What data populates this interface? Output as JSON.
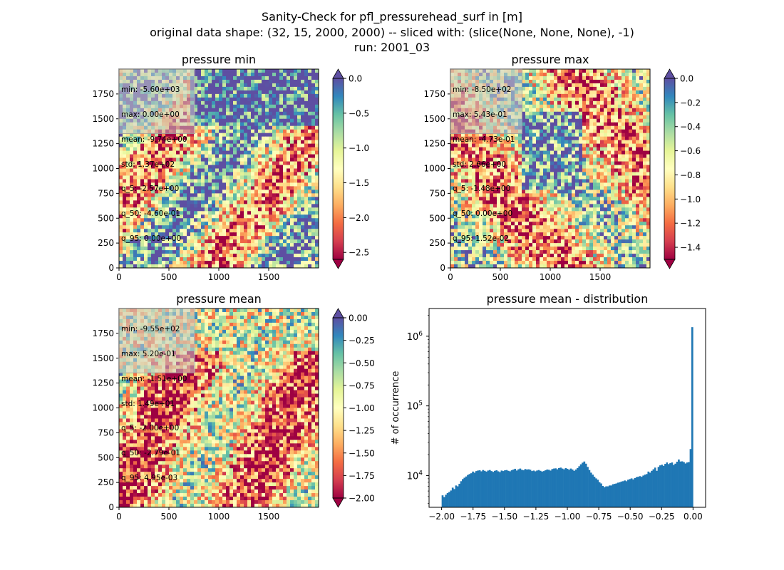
{
  "suptitle": {
    "line1": "Sanity-Check for pfl_pressurehead_surf in [m]",
    "line2": "original data shape: (32, 15, 2000, 2000) -- sliced with: (slice(None, None, None), -1)",
    "line3": "run: 2001_03"
  },
  "panels": [
    {
      "title": "pressure min",
      "stats": [
        "min: -5.60e+03",
        "max: 0.00e+00",
        "mean: -9.74e+00",
        "std: 1.37e+02",
        "q_5: -2.57e+00",
        "q_50: -4.60e-01",
        "q_95: 0.00e+00"
      ],
      "x_ticks": [
        "0",
        "500",
        "1000",
        "1500"
      ],
      "y_ticks": [
        "0",
        "250",
        "500",
        "750",
        "1000",
        "1250",
        "1500",
        "1750"
      ],
      "colorbar": {
        "vmin": -2.6,
        "vmax": 0.0,
        "ticks": [
          "0.0",
          "−0.5",
          "−1.0",
          "−1.5",
          "−2.0",
          "−2.5"
        ],
        "tick_values": [
          0,
          -0.5,
          -1.0,
          -1.5,
          -2.0,
          -2.5
        ],
        "extend_top": true,
        "extend_bottom": true
      }
    },
    {
      "title": "pressure max",
      "stats": [
        "min: -8.50e+02",
        "max: 5.43e-01",
        "mean: -4.73e-01",
        "std: 2.66e+00",
        "q_5: -1.48e+00",
        "q_50: 0.00e+00",
        "q_95: 1.52e-02"
      ],
      "x_ticks": [
        "0",
        "500",
        "1000",
        "1500"
      ],
      "y_ticks": [
        "0",
        "250",
        "500",
        "750",
        "1000",
        "1250",
        "1500",
        "1750"
      ],
      "colorbar": {
        "vmin": -1.5,
        "vmax": 0.0,
        "ticks": [
          "0.0",
          "−0.2",
          "−0.4",
          "−0.6",
          "−0.8",
          "−1.0",
          "−1.2",
          "−1.4"
        ],
        "tick_values": [
          0,
          -0.2,
          -0.4,
          -0.6,
          -0.8,
          -1.0,
          -1.2,
          -1.4
        ],
        "extend_top": true,
        "extend_bottom": true
      }
    },
    {
      "title": "pressure mean",
      "stats": [
        "min: -9.55e+02",
        "max: 5.20e-01",
        "mean: -1.51e+00",
        "std: 1.49e+01",
        "q_5: -2.00e+00",
        "q_50: -2.79e-01",
        "q_95: 4.95e-03"
      ],
      "x_ticks": [
        "0",
        "500",
        "1000",
        "1500"
      ],
      "y_ticks": [
        "0",
        "250",
        "500",
        "750",
        "1000",
        "1250",
        "1500",
        "1750"
      ],
      "colorbar": {
        "vmin": -2.0,
        "vmax": 0.0,
        "ticks": [
          "0.00",
          "−0.25",
          "−0.50",
          "−0.75",
          "−1.00",
          "−1.25",
          "−1.50",
          "−1.75",
          "−2.00"
        ],
        "tick_values": [
          0,
          -0.25,
          -0.5,
          -0.75,
          -1.0,
          -1.25,
          -1.5,
          -1.75,
          -2.0
        ],
        "extend_top": true,
        "extend_bottom": true
      }
    }
  ],
  "colors": {
    "spectral": [
      "#9e0142",
      "#d53e4f",
      "#f46d43",
      "#fdae61",
      "#fee08b",
      "#ffffbf",
      "#e6f598",
      "#abdda4",
      "#66c2a5",
      "#3288bd",
      "#5e4fa2"
    ],
    "hist_bar": "#1f77b4"
  },
  "chart_data": {
    "type": "bar",
    "title": "pressure mean - distribution",
    "xlabel": "",
    "ylabel": "# of occurrence",
    "yscale": "log",
    "xlim": [
      -2.1,
      0.1
    ],
    "ylim": [
      3500,
      2500000
    ],
    "x_ticks": [
      "−2.00",
      "−1.75",
      "−1.50",
      "−1.25",
      "−1.00",
      "−0.75",
      "−0.50",
      "−0.25",
      "0.00"
    ],
    "x_tick_values": [
      -2.0,
      -1.75,
      -1.5,
      -1.25,
      -1.0,
      -0.75,
      -0.5,
      -0.25,
      0.0
    ],
    "y_ticks": [
      "10^4",
      "10^5",
      "10^6"
    ],
    "bin_edges_range": [
      -2.0,
      0.0
    ],
    "values": [
      5200,
      4900,
      5300,
      5600,
      5800,
      6100,
      6700,
      6400,
      7200,
      7000,
      7600,
      8300,
      8900,
      9300,
      9700,
      10200,
      10500,
      10800,
      11400,
      11000,
      11600,
      11800,
      11900,
      11500,
      12000,
      11700,
      11400,
      11800,
      12000,
      11600,
      11300,
      11700,
      11900,
      11500,
      11200,
      11800,
      11600,
      11900,
      12000,
      11700,
      11500,
      11900,
      12200,
      12500,
      11800,
      12300,
      12600,
      12100,
      11900,
      12400,
      12200,
      12300,
      12100,
      11600,
      11800,
      11500,
      11800,
      12000,
      11700,
      11400,
      11600,
      11900,
      12200,
      12100,
      11800,
      12400,
      12600,
      12700,
      12300,
      12800,
      13000,
      12600,
      12300,
      12800,
      12500,
      12100,
      12600,
      12200,
      11700,
      12200,
      12800,
      13600,
      14500,
      15300,
      15900,
      14800,
      13300,
      12000,
      11000,
      10300,
      9600,
      9100,
      8700,
      8000,
      7700,
      7100,
      6800,
      7000,
      7000,
      7200,
      7200,
      7500,
      7600,
      7700,
      7900,
      8000,
      8200,
      8300,
      8500,
      8300,
      8700,
      8900,
      9100,
      8800,
      9200,
      9500,
      9600,
      9800,
      9600,
      10000,
      10300,
      10500,
      11400,
      11000,
      11700,
      12300,
      13000,
      11700,
      13300,
      14000,
      14300,
      13800,
      14700,
      15400,
      14600,
      15100,
      15400,
      14200,
      14800,
      15800,
      17000,
      15900,
      16000,
      15600,
      14900,
      15400,
      15600,
      24000,
      1350000
    ]
  }
}
